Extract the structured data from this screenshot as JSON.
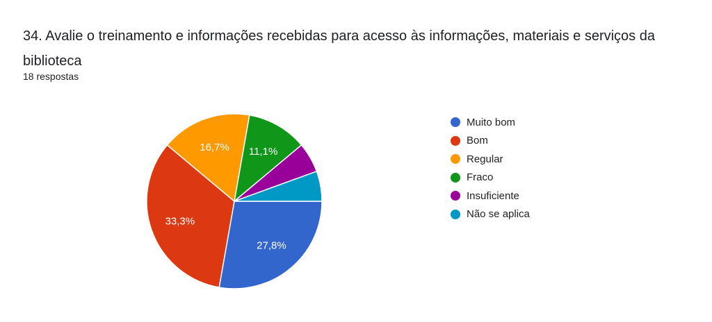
{
  "title": "34. Avalie o treinamento e informações recebidas para acesso às informações, materiais e serviços da biblioteca",
  "subtitle": "18 respostas",
  "chart_data": {
    "type": "pie",
    "title": "34. Avalie o treinamento e informações recebidas para acesso às informações, materiais e serviços da biblioteca",
    "total_responses": 18,
    "legend_position": "right",
    "start_angle_deg": 90,
    "slices": [
      {
        "name": "Muito bom",
        "count": 5,
        "percent": 27.8,
        "label": "27,8%",
        "color": "#3366cc"
      },
      {
        "name": "Bom",
        "count": 6,
        "percent": 33.3,
        "label": "33,3%",
        "color": "#dc3912"
      },
      {
        "name": "Regular",
        "count": 3,
        "percent": 16.7,
        "label": "16,7%",
        "color": "#ff9900"
      },
      {
        "name": "Fraco",
        "count": 2,
        "percent": 11.1,
        "label": "11,1%",
        "color": "#109618"
      },
      {
        "name": "Insuficiente",
        "count": 1,
        "percent": 5.6,
        "label": "",
        "color": "#990099"
      },
      {
        "name": "Não se aplica",
        "count": 1,
        "percent": 5.6,
        "label": "",
        "color": "#0099c6"
      }
    ]
  }
}
